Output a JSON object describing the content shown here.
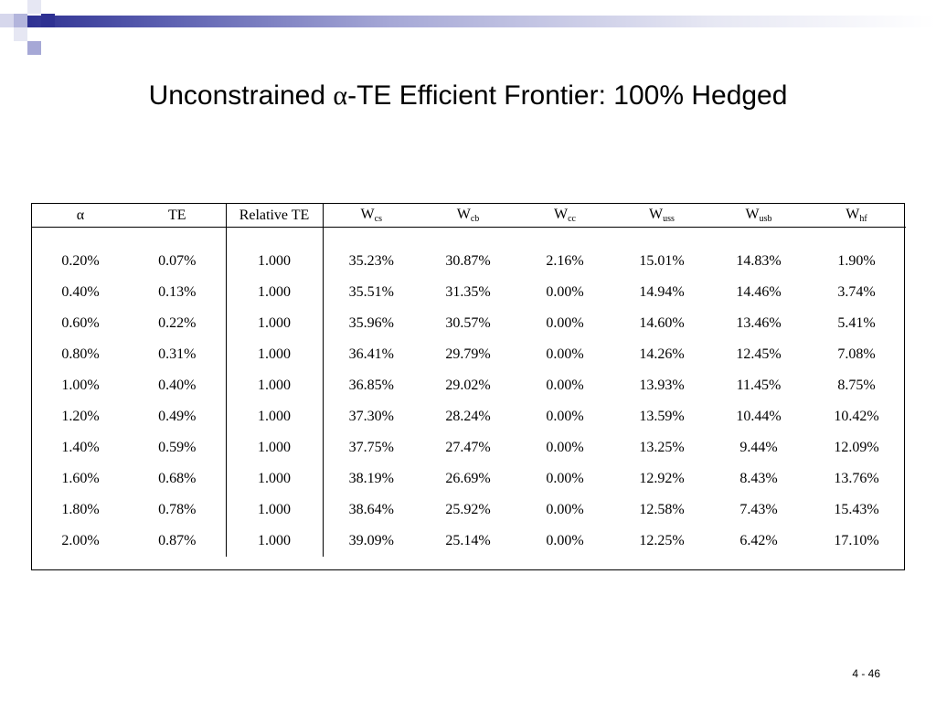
{
  "slide": {
    "title_prefix": "Unconstrained ",
    "title_alpha": "α",
    "title_suffix": "-TE Efficient Frontier: 100% Hedged",
    "page_number": "4 - 46",
    "accent_color": "#2e3192"
  },
  "table": {
    "headers": [
      {
        "base": "α",
        "sub": ""
      },
      {
        "base": "TE",
        "sub": ""
      },
      {
        "base": "Relative TE",
        "sub": ""
      },
      {
        "base": "W",
        "sub": "cs"
      },
      {
        "base": "W",
        "sub": "cb"
      },
      {
        "base": "W",
        "sub": "cc"
      },
      {
        "base": "W",
        "sub": "uss"
      },
      {
        "base": "W",
        "sub": "usb"
      },
      {
        "base": "W",
        "sub": "hf"
      }
    ],
    "rows": [
      [
        "0.20%",
        "0.07%",
        "1.000",
        "35.23%",
        "30.87%",
        "2.16%",
        "15.01%",
        "14.83%",
        "1.90%"
      ],
      [
        "0.40%",
        "0.13%",
        "1.000",
        "35.51%",
        "31.35%",
        "0.00%",
        "14.94%",
        "14.46%",
        "3.74%"
      ],
      [
        "0.60%",
        "0.22%",
        "1.000",
        "35.96%",
        "30.57%",
        "0.00%",
        "14.60%",
        "13.46%",
        "5.41%"
      ],
      [
        "0.80%",
        "0.31%",
        "1.000",
        "36.41%",
        "29.79%",
        "0.00%",
        "14.26%",
        "12.45%",
        "7.08%"
      ],
      [
        "1.00%",
        "0.40%",
        "1.000",
        "36.85%",
        "29.02%",
        "0.00%",
        "13.93%",
        "11.45%",
        "8.75%"
      ],
      [
        "1.20%",
        "0.49%",
        "1.000",
        "37.30%",
        "28.24%",
        "0.00%",
        "13.59%",
        "10.44%",
        "10.42%"
      ],
      [
        "1.40%",
        "0.59%",
        "1.000",
        "37.75%",
        "27.47%",
        "0.00%",
        "13.25%",
        "9.44%",
        "12.09%"
      ],
      [
        "1.60%",
        "0.68%",
        "1.000",
        "38.19%",
        "26.69%",
        "0.00%",
        "12.92%",
        "8.43%",
        "13.76%"
      ],
      [
        "1.80%",
        "0.78%",
        "1.000",
        "38.64%",
        "25.92%",
        "0.00%",
        "12.58%",
        "7.43%",
        "15.43%"
      ],
      [
        "2.00%",
        "0.87%",
        "1.000",
        "39.09%",
        "25.14%",
        "0.00%",
        "12.25%",
        "6.42%",
        "17.10%"
      ]
    ]
  }
}
